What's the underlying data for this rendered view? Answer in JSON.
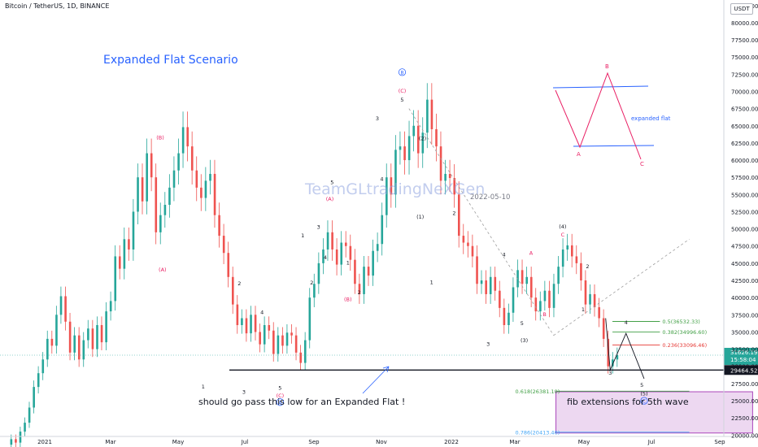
{
  "header": {
    "symbol": "Bitcoin / TetherUS, 1D, BINANCE",
    "currency_badge": "USDT"
  },
  "chart_data": {
    "type": "line",
    "title": "Expanded Flat Scenario",
    "watermark": "TeamGLtradingNeXGen",
    "date_label": "2022-05-10",
    "x_ticks": [
      "2021",
      "Mar",
      "May",
      "Jul",
      "Sep",
      "Nov",
      "2022",
      "Mar",
      "May",
      "Jul",
      "Sep"
    ],
    "y_ticks": [
      82500,
      80000,
      77500,
      75000,
      72500,
      70000,
      67500,
      65000,
      62500,
      60000,
      57500,
      55000,
      52500,
      50000,
      47500,
      45000,
      42500,
      40000,
      37500,
      35000,
      32500,
      30000,
      27500,
      25000,
      22500,
      20000
    ],
    "y_range": [
      19800,
      83300
    ],
    "current_price": {
      "price": "31626.19",
      "countdown": "15:58:04",
      "value": 31626
    },
    "support_price": {
      "label": "29464.52",
      "value": 29464.52
    },
    "colors": {
      "up": "#26a69a",
      "down": "#ef5350",
      "wave_red": "#e91e63",
      "wave_black": "#131722",
      "fib_green": "#43a047",
      "fib_red": "#e53935",
      "fib_blue": "#42a5f5",
      "box_fill": "#e1bee7",
      "box_border": "#ab47bc",
      "title": "#2962ff"
    },
    "price_series": [
      [
        0,
        18600
      ],
      [
        2,
        19400
      ],
      [
        4,
        18900
      ],
      [
        6,
        20500
      ],
      [
        8,
        21800
      ],
      [
        10,
        24000
      ],
      [
        12,
        27000
      ],
      [
        14,
        29000
      ],
      [
        16,
        31000
      ],
      [
        18,
        34000
      ],
      [
        20,
        33000
      ],
      [
        22,
        37500
      ],
      [
        24,
        40200
      ],
      [
        26,
        36500
      ],
      [
        28,
        32000
      ],
      [
        30,
        34500
      ],
      [
        32,
        31000
      ],
      [
        34,
        33800
      ],
      [
        36,
        35500
      ],
      [
        38,
        32500
      ],
      [
        40,
        36000
      ],
      [
        42,
        33500
      ],
      [
        44,
        38000
      ],
      [
        46,
        39500
      ],
      [
        48,
        46000
      ],
      [
        50,
        44200
      ],
      [
        52,
        48500
      ],
      [
        54,
        47000
      ],
      [
        56,
        52500
      ],
      [
        58,
        57500
      ],
      [
        60,
        54000
      ],
      [
        62,
        61000
      ],
      [
        64,
        57500
      ],
      [
        66,
        49500
      ],
      [
        68,
        52000
      ],
      [
        70,
        53500
      ],
      [
        72,
        56000
      ],
      [
        74,
        58500
      ],
      [
        76,
        61000
      ],
      [
        78,
        64800
      ],
      [
        80,
        62000
      ],
      [
        82,
        58500
      ],
      [
        84,
        56000
      ],
      [
        86,
        54500
      ],
      [
        88,
        57000
      ],
      [
        90,
        58000
      ],
      [
        92,
        52000
      ],
      [
        94,
        49000
      ],
      [
        96,
        46500
      ],
      [
        98,
        43000
      ],
      [
        100,
        39000
      ],
      [
        102,
        36000
      ],
      [
        104,
        37000
      ],
      [
        106,
        34800
      ],
      [
        108,
        37500
      ],
      [
        110,
        35000
      ],
      [
        112,
        33200
      ],
      [
        114,
        36000
      ],
      [
        116,
        35200
      ],
      [
        118,
        31800
      ],
      [
        120,
        34500
      ],
      [
        122,
        33000
      ],
      [
        124,
        34900
      ],
      [
        126,
        34500
      ],
      [
        128,
        32000
      ],
      [
        130,
        30500
      ],
      [
        132,
        33800
      ],
      [
        134,
        40000
      ],
      [
        136,
        42000
      ],
      [
        138,
        45000
      ],
      [
        140,
        47000
      ],
      [
        142,
        49500
      ],
      [
        144,
        47000
      ],
      [
        146,
        44800
      ],
      [
        148,
        48000
      ],
      [
        150,
        47500
      ],
      [
        152,
        45500
      ],
      [
        154,
        42000
      ],
      [
        156,
        40500
      ],
      [
        158,
        44500
      ],
      [
        160,
        43200
      ],
      [
        162,
        46800
      ],
      [
        164,
        47800
      ],
      [
        166,
        52000
      ],
      [
        168,
        57500
      ],
      [
        170,
        55000
      ],
      [
        172,
        61500
      ],
      [
        174,
        62000
      ],
      [
        176,
        60000
      ],
      [
        178,
        63500
      ],
      [
        180,
        65000
      ],
      [
        182,
        61000
      ],
      [
        184,
        64000
      ],
      [
        186,
        68800
      ],
      [
        188,
        64500
      ],
      [
        190,
        62000
      ],
      [
        192,
        57000
      ],
      [
        194,
        58000
      ],
      [
        196,
        57400
      ],
      [
        198,
        55000
      ],
      [
        200,
        49000
      ],
      [
        202,
        48000
      ],
      [
        204,
        47500
      ],
      [
        206,
        46000
      ],
      [
        208,
        42000
      ],
      [
        210,
        42500
      ],
      [
        212,
        40500
      ],
      [
        214,
        43000
      ],
      [
        216,
        41000
      ],
      [
        218,
        38500
      ],
      [
        220,
        36000
      ],
      [
        222,
        37800
      ],
      [
        224,
        41500
      ],
      [
        226,
        44000
      ],
      [
        228,
        42000
      ],
      [
        230,
        43000
      ],
      [
        232,
        40000
      ],
      [
        234,
        38000
      ],
      [
        236,
        39500
      ],
      [
        238,
        41000
      ],
      [
        240,
        38500
      ],
      [
        242,
        42000
      ],
      [
        244,
        44500
      ],
      [
        246,
        47000
      ],
      [
        248,
        47600
      ],
      [
        250,
        46000
      ],
      [
        252,
        45000
      ],
      [
        254,
        42500
      ],
      [
        256,
        39000
      ],
      [
        258,
        40500
      ],
      [
        260,
        38600
      ],
      [
        262,
        37000
      ],
      [
        264,
        34000
      ],
      [
        266,
        30000
      ],
      [
        268,
        31000
      ],
      [
        270,
        31626
      ]
    ],
    "wave_labels": [
      {
        "label": "(B)",
        "day": 68,
        "price": 63000,
        "color": "red"
      },
      {
        "label": "(A)",
        "day": 69,
        "price": 43800,
        "color": "red"
      },
      {
        "label": "1",
        "day": 87,
        "price": 26800,
        "color": "black"
      },
      {
        "label": "2",
        "day": 103,
        "price": 41800,
        "color": "black"
      },
      {
        "label": "3",
        "day": 105,
        "price": 26000,
        "color": "black"
      },
      {
        "label": "4",
        "day": 113,
        "price": 37600,
        "color": "black"
      },
      {
        "label": "5",
        "day": 121,
        "price": 26600,
        "color": "black"
      },
      {
        "label": "(C)",
        "day": 121,
        "price": 25500,
        "color": "red"
      },
      {
        "label": "A",
        "day": 121,
        "price": 24500,
        "color": "blue_circle"
      },
      {
        "label": "1",
        "day": 131,
        "price": 48800,
        "color": "black"
      },
      {
        "label": "2",
        "day": 135,
        "price": 41900,
        "color": "black"
      },
      {
        "label": "3",
        "day": 138,
        "price": 50000,
        "color": "black"
      },
      {
        "label": "4",
        "day": 141,
        "price": 45600,
        "color": "black"
      },
      {
        "label": "5",
        "day": 144,
        "price": 56500,
        "color": "black"
      },
      {
        "label": "(A)",
        "day": 143,
        "price": 54100,
        "color": "red"
      },
      {
        "label": "1",
        "day": 151,
        "price": 44800,
        "color": "black"
      },
      {
        "label": "2",
        "day": 156,
        "price": 40500,
        "color": "black"
      },
      {
        "label": "(B)",
        "day": 151,
        "price": 39500,
        "color": "red"
      },
      {
        "label": "3",
        "day": 164,
        "price": 65800,
        "color": "black"
      },
      {
        "label": "4",
        "day": 166,
        "price": 57000,
        "color": "black"
      },
      {
        "label": "(C)",
        "day": 175,
        "price": 69800,
        "color": "red"
      },
      {
        "label": "5",
        "day": 175,
        "price": 68500,
        "color": "black"
      },
      {
        "label": "B",
        "day": 175,
        "price": 72500,
        "color": "blue_circle"
      },
      {
        "label": "(2)",
        "day": 184,
        "price": 62900,
        "color": "black"
      },
      {
        "label": "(1)",
        "day": 183,
        "price": 51500,
        "color": "black"
      },
      {
        "label": "1",
        "day": 188,
        "price": 42000,
        "color": "black"
      },
      {
        "label": "2",
        "day": 198,
        "price": 52000,
        "color": "black"
      },
      {
        "label": "3",
        "day": 213,
        "price": 33000,
        "color": "black"
      },
      {
        "label": "4",
        "day": 220,
        "price": 46000,
        "color": "black"
      },
      {
        "label": "5",
        "day": 228,
        "price": 36000,
        "color": "black"
      },
      {
        "label": "(3)",
        "day": 229,
        "price": 33500,
        "color": "black"
      },
      {
        "label": "A",
        "day": 232,
        "price": 46200,
        "color": "red"
      },
      {
        "label": "B",
        "day": 238,
        "price": 37300,
        "color": "red"
      },
      {
        "label": "(4)",
        "day": 246,
        "price": 50100,
        "color": "black"
      },
      {
        "label": "C",
        "day": 246,
        "price": 48900,
        "color": "red"
      },
      {
        "label": "2",
        "day": 257,
        "price": 44300,
        "color": "black"
      },
      {
        "label": "1",
        "day": 255,
        "price": 38000,
        "color": "black"
      },
      {
        "label": "3",
        "day": 267,
        "price": 28800,
        "color": "black"
      },
      {
        "label": "4",
        "day": 274,
        "price": 36100,
        "color": "black"
      },
      {
        "label": "5",
        "day": 281,
        "price": 27000,
        "color": "black"
      },
      {
        "label": "(5)",
        "day": 282,
        "price": 25800,
        "color": "black"
      },
      {
        "label": "C",
        "day": 282,
        "price": 24700,
        "color": "blue_circle"
      }
    ],
    "projection_path": [
      [
        265,
        37000
      ],
      [
        267,
        29464
      ],
      [
        274,
        34800
      ],
      [
        282,
        28200
      ]
    ],
    "trendlines": [
      {
        "from": [
          178,
          67500
        ],
        "to": [
          242,
          34500
        ],
        "style": "dashed"
      },
      {
        "from": [
          242,
          34500
        ],
        "to": [
          302,
          48500
        ],
        "style": "dashed"
      }
    ],
    "fib_levels": [
      {
        "label": "0.5(36532.33)",
        "value": 36532.33,
        "color": "green",
        "day_from": 268,
        "day_to": 289
      },
      {
        "label": "0.382(34996.60)",
        "value": 34996.6,
        "color": "green",
        "day_from": 268,
        "day_to": 289
      },
      {
        "label": "0.236(33096.46)",
        "value": 33096.46,
        "color": "red",
        "day_from": 268,
        "day_to": 289
      },
      {
        "label": "0.618(26381.10)",
        "value": 26381.1,
        "color": "green",
        "day_from": 243,
        "day_to": 302
      },
      {
        "label": "0.786(20413.46)",
        "value": 20413.46,
        "color": "blue",
        "day_from": 243,
        "day_to": 302
      }
    ],
    "fib_box": {
      "label": "fib extensions for 5th wave",
      "day_from": 243,
      "day_to": 330,
      "price_top": 26300,
      "price_bottom": 20300
    },
    "annotation": "should go pass this low for an Expanded Flat !",
    "diagram": {
      "label": "expanded flat",
      "points": {
        "A": "A",
        "B": "B",
        "C": "C"
      }
    }
  }
}
